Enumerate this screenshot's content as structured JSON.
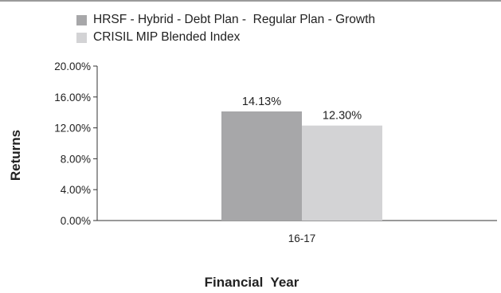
{
  "chart_data": {
    "type": "bar",
    "categories": [
      "16-17"
    ],
    "series": [
      {
        "name": "HRSF - Hybrid - Debt Plan -  Regular Plan - Growth",
        "values": [
          14.13
        ],
        "value_label": "14.13%",
        "color": "#a7a7a9"
      },
      {
        "name": "CRISIL MIP Blended Index",
        "values": [
          12.3
        ],
        "value_label": "12.30%",
        "color": "#d3d3d5"
      }
    ],
    "yticks": [
      "20.00%",
      "16.00%",
      "12.00%",
      "8.00%",
      "4.00%",
      "0.00%"
    ],
    "xlabel": "Financial  Year",
    "ylabel": "Returns",
    "ylim": [
      0,
      20
    ],
    "grid": false,
    "legend_position": "top-left"
  }
}
